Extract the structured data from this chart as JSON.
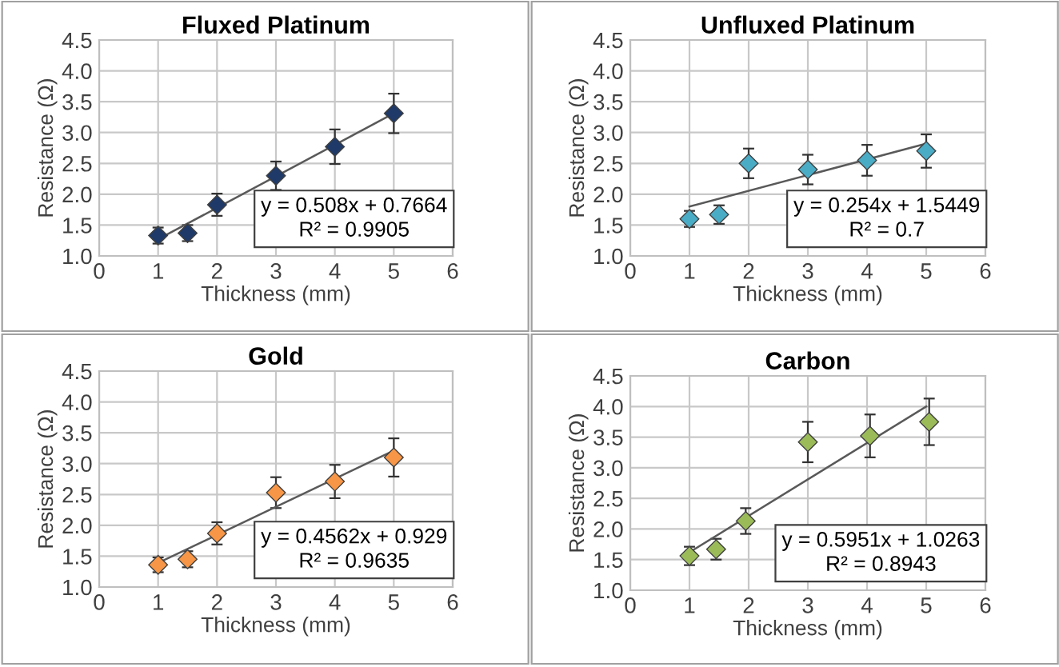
{
  "chart_data": [
    {
      "type": "scatter",
      "title": "Fluxed Platinum",
      "xlabel": "Thickness (mm)",
      "ylabel": "Resistance (Ω)",
      "xlim": [
        0,
        6
      ],
      "xticks": [
        0,
        1,
        2,
        3,
        4,
        5,
        6
      ],
      "ylim": [
        1.0,
        4.5
      ],
      "yticks": [
        {
          "value": 1.0,
          "label": "1.0"
        },
        1.5,
        {
          "value": 2.0,
          "label": "2.0"
        },
        2.5,
        {
          "value": 3.0,
          "label": "3.0"
        },
        3.5,
        {
          "value": 4.0,
          "label": "4.0"
        },
        4.5
      ],
      "grid": true,
      "series": [
        {
          "marker": "diamond",
          "color": "#1f3a68",
          "x": [
            1,
            1.5,
            2,
            3,
            4,
            5
          ],
          "values": [
            1.33,
            1.37,
            1.83,
            2.3,
            2.77,
            3.31
          ],
          "errors": [
            0.13,
            0.13,
            0.18,
            0.23,
            0.28,
            0.32
          ]
        },
        {
          "type": "line",
          "color": "#595959",
          "x": [
            1,
            5
          ],
          "values": [
            1.27,
            3.31
          ]
        }
      ],
      "annotations": [
        "y = 0.508x + 0.7664",
        "R² = 0.9905"
      ]
    },
    {
      "type": "scatter",
      "title": "Unfluxed Platinum",
      "xlabel": "Thickness (mm)",
      "ylabel": "Resistance (Ω)",
      "xlim": [
        0,
        6
      ],
      "xticks": [
        0,
        1,
        2,
        3,
        4,
        5,
        6
      ],
      "ylim": [
        1.0,
        4.5
      ],
      "yticks": [
        {
          "value": 1.0,
          "label": "1.0"
        },
        1.5,
        {
          "value": 2.0,
          "label": "2.0"
        },
        2.5,
        {
          "value": 3.0,
          "label": "3.0"
        },
        3.5,
        {
          "value": 4.0,
          "label": "4.0"
        },
        4.5
      ],
      "grid": true,
      "series": [
        {
          "marker": "diamond",
          "color": "#4bacc6",
          "x": [
            1,
            1.5,
            2,
            3,
            4,
            5
          ],
          "values": [
            1.6,
            1.67,
            2.5,
            2.4,
            2.55,
            2.7
          ],
          "errors": [
            0.13,
            0.15,
            0.24,
            0.24,
            0.25,
            0.27
          ]
        },
        {
          "type": "line",
          "color": "#595959",
          "x": [
            1,
            5
          ],
          "values": [
            1.8,
            2.82
          ]
        }
      ],
      "annotations": [
        "y = 0.254x + 1.5449",
        "R² = 0.7"
      ]
    },
    {
      "type": "scatter",
      "title": "Gold",
      "xlabel": "Thickness (mm)",
      "ylabel": "Resistance (Ω)",
      "xlim": [
        0,
        6
      ],
      "xticks": [
        0,
        1,
        2,
        3,
        4,
        5,
        6
      ],
      "ylim": [
        1.0,
        4.5
      ],
      "yticks": [
        {
          "value": 1.0,
          "label": "1.0"
        },
        1.5,
        {
          "value": 2.0,
          "label": "2.0"
        },
        2.5,
        {
          "value": 3.0,
          "label": "3.0"
        },
        3.5,
        {
          "value": 4.0,
          "label": "4.0"
        },
        4.5
      ],
      "grid": true,
      "series": [
        {
          "marker": "diamond",
          "color": "#f79646",
          "x": [
            1,
            1.5,
            2,
            3,
            4,
            5
          ],
          "values": [
            1.36,
            1.45,
            1.87,
            2.53,
            2.71,
            3.1
          ],
          "errors": [
            0.12,
            0.13,
            0.18,
            0.25,
            0.27,
            0.31
          ]
        },
        {
          "type": "line",
          "color": "#595959",
          "x": [
            1,
            5
          ],
          "values": [
            1.39,
            3.21
          ]
        }
      ],
      "annotations": [
        "y = 0.4562x + 0.929",
        "R² = 0.9635"
      ]
    },
    {
      "type": "scatter",
      "title": "Carbon",
      "xlabel": "Thickness (mm)",
      "ylabel": "Resistance (Ω)",
      "xlim": [
        0,
        6
      ],
      "xticks": [
        0,
        1,
        2,
        3,
        4,
        5,
        6
      ],
      "ylim": [
        1.0,
        4.5
      ],
      "yticks": [
        {
          "value": 1.0,
          "label": "1.0"
        },
        1.5,
        {
          "value": 2.0,
          "label": "2.0"
        },
        2.5,
        {
          "value": 3.0,
          "label": "3.0"
        },
        3.5,
        {
          "value": 4.0,
          "label": "4.0"
        },
        4.5
      ],
      "grid": true,
      "series": [
        {
          "marker": "diamond",
          "color": "#9bbb59",
          "x": [
            1,
            1.45,
            1.95,
            3,
            4.05,
            5.05
          ],
          "values": [
            1.56,
            1.67,
            2.13,
            3.42,
            3.52,
            3.75
          ],
          "errors": [
            0.15,
            0.17,
            0.21,
            0.33,
            0.35,
            0.38
          ]
        },
        {
          "type": "line",
          "color": "#595959",
          "x": [
            1,
            5
          ],
          "values": [
            1.62,
            4.0
          ]
        }
      ],
      "annotations": [
        "y = 0.5951x + 1.0263",
        "R² = 0.8943"
      ]
    }
  ]
}
